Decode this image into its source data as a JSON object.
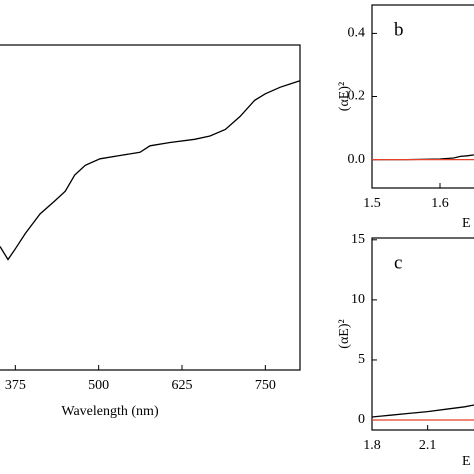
{
  "chart_data": [
    {
      "type": "line",
      "xlabel": "Wavelength (nm)",
      "xlim": [
        352,
        802
      ],
      "ylim": [
        0,
        1
      ],
      "xticks": [
        375,
        500,
        625,
        750
      ],
      "series": [
        {
          "color": "#000000",
          "x": [
            352,
            364,
            374,
            390,
            412,
            434,
            450,
            464,
            480,
            502,
            532,
            562,
            577,
            607,
            644,
            667,
            690,
            712,
            734,
            750,
            772,
            787,
            802
          ],
          "values": [
            0.38,
            0.34,
            0.37,
            0.42,
            0.48,
            0.52,
            0.55,
            0.6,
            0.63,
            0.65,
            0.66,
            0.67,
            0.69,
            0.7,
            0.71,
            0.72,
            0.74,
            0.78,
            0.83,
            0.85,
            0.87,
            0.88,
            0.89
          ]
        }
      ]
    },
    {
      "type": "line",
      "label": "b",
      "xlabel": "E",
      "ylabel": "(αE)²",
      "xlim": [
        1.5,
        1.65
      ],
      "ylim": [
        -0.09,
        0.49
      ],
      "xticks": [
        1.5,
        1.6
      ],
      "yticks": [
        {
          "value": 0,
          "label": "0.0"
        },
        0.2,
        0.4
      ],
      "series": [
        {
          "color": "#000000",
          "x": [
            1.5,
            1.55,
            1.6,
            1.62,
            1.63,
            1.64,
            1.65
          ],
          "values": [
            0,
            0,
            0.002,
            0.005,
            0.01,
            0.012,
            0.015
          ]
        },
        {
          "color": "#e8402a",
          "x": [
            1.5,
            1.65
          ],
          "values": [
            0,
            0
          ]
        }
      ]
    },
    {
      "type": "line",
      "label": "c",
      "xlabel": "E",
      "ylabel": "(αE)²",
      "xlim": [
        1.8,
        2.35
      ],
      "ylim": [
        -0.83,
        15.15
      ],
      "xticks": [
        1.8,
        2.1
      ],
      "yticks": [
        0,
        5,
        10,
        15
      ],
      "series": [
        {
          "color": "#000000",
          "x": [
            1.8,
            1.9,
            2.0,
            2.1,
            2.2,
            2.3,
            2.35
          ],
          "values": [
            0.25,
            0.4,
            0.55,
            0.7,
            0.9,
            1.1,
            1.25
          ]
        },
        {
          "color": "#e8402a",
          "x": [
            1.8,
            2.35
          ],
          "values": [
            0,
            0
          ]
        }
      ]
    }
  ]
}
